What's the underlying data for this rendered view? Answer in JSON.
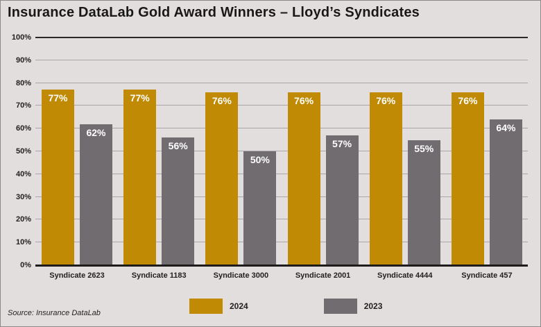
{
  "title": "Insurance DataLab Gold Award Winners – Lloyd’s Syndicates",
  "source_note": "Source: Insurance DataLab",
  "colors": {
    "background": "#E2DEDE",
    "gold": "#C18A04",
    "gray": "#716C70",
    "gridline": "#A9A5A8",
    "axis": "#1E1B1B",
    "text": "#232020",
    "bar_label": "#FFFFFF"
  },
  "chart_data": {
    "type": "bar",
    "title": "Insurance DataLab Gold Award Winners – Lloyd’s Syndicates",
    "categories": [
      "Syndicate 2623",
      "Syndicate 1183",
      "Syndicate 3000",
      "Syndicate 2001",
      "Syndicate 4444",
      "Syndicate 457"
    ],
    "series": [
      {
        "name": "2024",
        "color": "#C18A04",
        "values": [
          77,
          77,
          76,
          76,
          76,
          76
        ]
      },
      {
        "name": "2023",
        "color": "#716C70",
        "values": [
          62,
          56,
          50,
          57,
          55,
          64
        ]
      }
    ],
    "xlabel": "",
    "ylabel": "",
    "ylim": [
      0,
      100
    ],
    "yticks": [
      "0%",
      "10%",
      "20%",
      "30%",
      "40%",
      "50%",
      "60%",
      "70%",
      "80%",
      "90%",
      "100%"
    ],
    "value_suffix": "%",
    "grid": true,
    "legend_position": "bottom"
  }
}
